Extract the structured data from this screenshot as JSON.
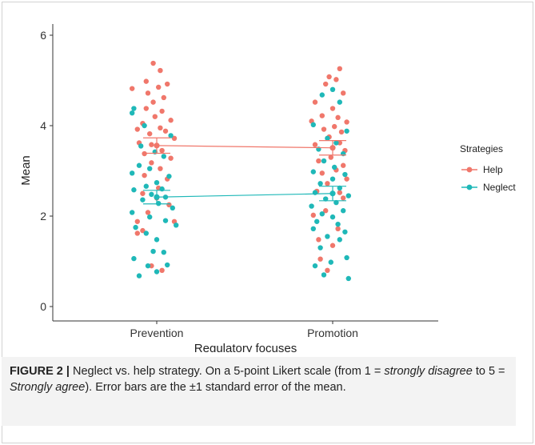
{
  "chart_data": {
    "type": "scatter",
    "title": "",
    "xlabel": "Regulatory focuses",
    "ylabel": "Mean",
    "categories": [
      "Prevention",
      "Promotion"
    ],
    "ylim": [
      0,
      6
    ],
    "yticks": [
      0,
      2,
      4,
      6
    ],
    "grid": false,
    "legend": {
      "title": "Strategies",
      "placement": "right"
    },
    "series": [
      {
        "name": "Help",
        "color": "#f0776b",
        "means": [
          3.56,
          3.51
        ],
        "se": [
          0.17,
          0.16
        ],
        "points": [
          [
            0.98,
            5.38
          ],
          [
            1.02,
            5.22
          ],
          [
            0.94,
            4.98
          ],
          [
            1.06,
            4.92
          ],
          [
            0.86,
            4.82
          ],
          [
            1.01,
            4.85
          ],
          [
            0.95,
            4.72
          ],
          [
            1.04,
            4.62
          ],
          [
            0.98,
            4.52
          ],
          [
            0.94,
            4.38
          ],
          [
            1.03,
            4.32
          ],
          [
            0.99,
            4.2
          ],
          [
            0.92,
            4.05
          ],
          [
            1.08,
            4.12
          ],
          [
            0.89,
            3.92
          ],
          [
            1.05,
            3.88
          ],
          [
            1.02,
            3.95
          ],
          [
            0.96,
            3.82
          ],
          [
            0.9,
            3.62
          ],
          [
            1.1,
            3.72
          ],
          [
            0.97,
            3.58
          ],
          [
            1.03,
            3.45
          ],
          [
            0.93,
            3.38
          ],
          [
            1.08,
            3.28
          ],
          [
            0.97,
            3.18
          ],
          [
            1.02,
            3.05
          ],
          [
            0.93,
            2.9
          ],
          [
            1.06,
            2.82
          ],
          [
            1.01,
            2.62
          ],
          [
            0.92,
            2.5
          ],
          [
            1.0,
            2.4
          ],
          [
            1.07,
            2.25
          ],
          [
            0.95,
            2.08
          ],
          [
            0.89,
            1.88
          ],
          [
            1.1,
            1.88
          ],
          [
            0.92,
            1.68
          ],
          [
            0.89,
            1.62
          ],
          [
            0.97,
            0.9
          ],
          [
            1.03,
            0.8
          ],
          [
            2.04,
            5.26
          ],
          [
            1.98,
            5.08
          ],
          [
            2.02,
            5.02
          ],
          [
            1.96,
            4.92
          ],
          [
            2.06,
            4.72
          ],
          [
            1.9,
            4.52
          ],
          [
            2.0,
            4.38
          ],
          [
            1.94,
            4.22
          ],
          [
            2.03,
            4.18
          ],
          [
            2.08,
            4.08
          ],
          [
            1.88,
            4.1
          ],
          [
            2.01,
            3.98
          ],
          [
            1.95,
            3.92
          ],
          [
            2.05,
            3.86
          ],
          [
            1.98,
            3.75
          ],
          [
            2.04,
            3.62
          ],
          [
            1.9,
            3.58
          ],
          [
            2.07,
            3.45
          ],
          [
            1.99,
            3.3
          ],
          [
            1.92,
            3.22
          ],
          [
            2.06,
            3.12
          ],
          [
            2.02,
            3.02
          ],
          [
            1.94,
            2.95
          ],
          [
            2.08,
            2.82
          ],
          [
            1.97,
            2.72
          ],
          [
            1.91,
            2.55
          ],
          [
            2.04,
            2.52
          ],
          [
            2.06,
            2.4
          ],
          [
            1.96,
            2.12
          ],
          [
            1.89,
            2.02
          ],
          [
            2.03,
            1.72
          ],
          [
            1.92,
            1.48
          ],
          [
            2.0,
            1.35
          ],
          [
            1.93,
            1.05
          ],
          [
            1.97,
            0.8
          ]
        ]
      },
      {
        "name": "Neglect",
        "color": "#1fb8b8",
        "means": [
          2.42,
          2.5
        ],
        "se": [
          0.15,
          0.16
        ],
        "points": [
          [
            0.87,
            4.38
          ],
          [
            0.86,
            4.28
          ],
          [
            0.93,
            4.0
          ],
          [
            1.08,
            3.78
          ],
          [
            0.91,
            3.55
          ],
          [
            0.99,
            3.42
          ],
          [
            1.04,
            3.32
          ],
          [
            0.9,
            3.12
          ],
          [
            0.96,
            3.05
          ],
          [
            0.86,
            2.95
          ],
          [
            1.07,
            2.88
          ],
          [
            1.0,
            2.74
          ],
          [
            0.94,
            2.66
          ],
          [
            1.03,
            2.6
          ],
          [
            0.87,
            2.58
          ],
          [
            0.97,
            2.48
          ],
          [
            1.05,
            2.42
          ],
          [
            0.92,
            2.36
          ],
          [
            1.01,
            2.28
          ],
          [
            1.09,
            2.18
          ],
          [
            0.86,
            2.08
          ],
          [
            0.96,
            1.98
          ],
          [
            1.05,
            1.9
          ],
          [
            0.88,
            1.75
          ],
          [
            1.11,
            1.8
          ],
          [
            0.94,
            1.62
          ],
          [
            1.0,
            1.48
          ],
          [
            1.04,
            1.2
          ],
          [
            0.98,
            1.22
          ],
          [
            0.87,
            1.06
          ],
          [
            1.06,
            0.92
          ],
          [
            0.95,
            0.9
          ],
          [
            0.9,
            0.68
          ],
          [
            1.0,
            0.77
          ],
          [
            2.0,
            4.8
          ],
          [
            1.94,
            4.68
          ],
          [
            2.04,
            4.52
          ],
          [
            1.89,
            4.02
          ],
          [
            2.08,
            3.88
          ],
          [
            1.97,
            3.72
          ],
          [
            2.02,
            3.62
          ],
          [
            1.92,
            3.48
          ],
          [
            2.06,
            3.38
          ],
          [
            1.95,
            3.22
          ],
          [
            2.01,
            3.08
          ],
          [
            1.89,
            2.98
          ],
          [
            2.07,
            2.92
          ],
          [
            2.0,
            2.82
          ],
          [
            1.93,
            2.72
          ],
          [
            2.04,
            2.62
          ],
          [
            1.9,
            2.52
          ],
          [
            2.09,
            2.45
          ],
          [
            1.96,
            2.38
          ],
          [
            2.02,
            2.3
          ],
          [
            1.88,
            2.22
          ],
          [
            2.06,
            2.12
          ],
          [
            1.94,
            2.05
          ],
          [
            2.0,
            1.98
          ],
          [
            1.91,
            1.88
          ],
          [
            2.03,
            1.82
          ],
          [
            1.89,
            1.72
          ],
          [
            2.07,
            1.65
          ],
          [
            1.97,
            1.55
          ],
          [
            2.04,
            1.48
          ],
          [
            1.93,
            1.3
          ],
          [
            2.08,
            1.08
          ],
          [
            1.99,
            0.98
          ],
          [
            1.9,
            0.9
          ],
          [
            1.95,
            0.7
          ],
          [
            2.09,
            0.62
          ]
        ]
      }
    ]
  },
  "caption": {
    "label": "FIGURE 2 |",
    "text_1": " Neglect vs. help strategy. On a 5-point Likert scale (from 1 = ",
    "em_1": "strongly disagree",
    "text_2": " to 5 = ",
    "em_2": "Strongly agree",
    "text_3": "). Error bars are the ±1 standard error of the mean."
  }
}
